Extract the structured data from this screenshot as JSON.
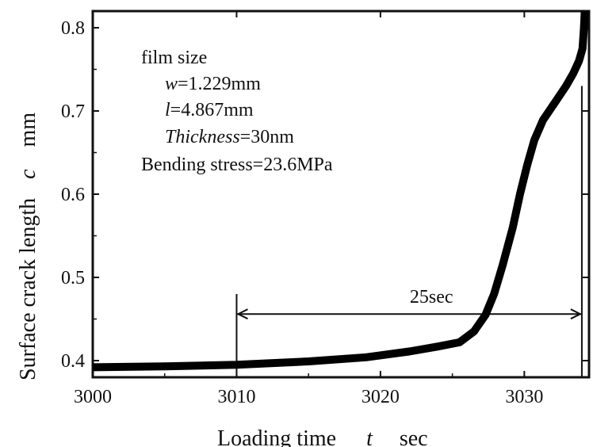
{
  "chart_data": {
    "type": "line",
    "title": "",
    "xlabel": "Loading time",
    "xlabel_symbol": "t",
    "xlabel_unit": "sec",
    "ylabel": "Surface crack length",
    "ylabel_symbol": "c",
    "ylabel_unit": "mm",
    "xlim": [
      3000,
      3034.5
    ],
    "ylim": [
      0.38,
      0.82
    ],
    "x_ticks": [
      3000,
      3010,
      3020,
      3030
    ],
    "x_tick_labels": [
      "3000",
      "3010",
      "3020",
      "3030"
    ],
    "y_ticks": [
      0.4,
      0.5,
      0.6,
      0.7,
      0.8
    ],
    "y_tick_labels": [
      "0.4",
      "0.5",
      "0.6",
      "0.7",
      "0.8"
    ],
    "grid": false,
    "series": [
      {
        "x": [
          3000,
          3005,
          3010,
          3015,
          3019,
          3022,
          3024,
          3025.5,
          3026.5,
          3027.3,
          3027.9,
          3028.5,
          3029.2,
          3029.7,
          3030.2,
          3030.7,
          3031.3,
          3032.2,
          3032.9,
          3033.4,
          3033.8,
          3034.05,
          3034.15,
          3034.2
        ],
        "y": [
          0.392,
          0.393,
          0.395,
          0.399,
          0.404,
          0.411,
          0.417,
          0.422,
          0.435,
          0.455,
          0.48,
          0.515,
          0.56,
          0.6,
          0.635,
          0.665,
          0.689,
          0.712,
          0.73,
          0.745,
          0.76,
          0.775,
          0.8,
          0.82
        ],
        "color": "#000000"
      }
    ],
    "annotations": {
      "film_info": {
        "heading": "film size",
        "w_label": "w",
        "w_value": "=1.229mm",
        "l_label": "l",
        "l_value": "=4.867mm",
        "thickness_label": "Thickness",
        "thickness_value": "=30nm",
        "stress": "Bending stress=23.6MPa"
      },
      "interval": {
        "label": "25sec",
        "start_x": 3010,
        "end_x": 3034,
        "y": 0.456,
        "left_marker_top_y": 0.48,
        "right_marker_top_y": 0.73
      }
    }
  }
}
